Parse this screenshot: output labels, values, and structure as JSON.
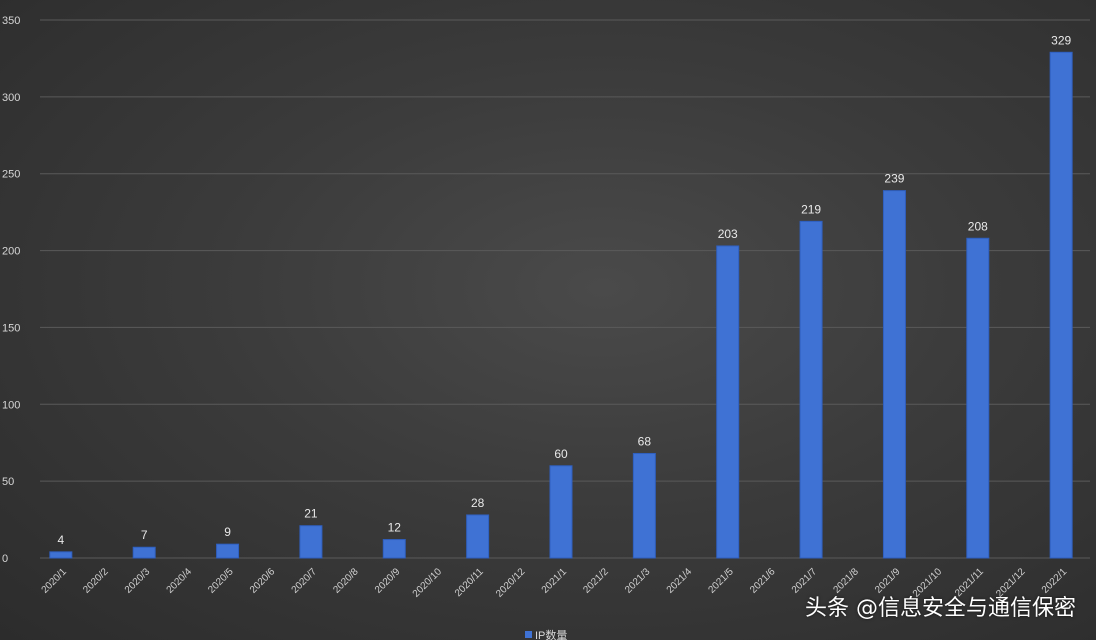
{
  "chart_data": {
    "type": "bar",
    "categories": [
      "2020/1",
      "2020/2",
      "2020/3",
      "2020/4",
      "2020/5",
      "2020/6",
      "2020/7",
      "2020/8",
      "2020/9",
      "2020/10",
      "2020/11",
      "2020/12",
      "2021/1",
      "2021/2",
      "2021/3",
      "2021/4",
      "2021/5",
      "2021/6",
      "2021/7",
      "2021/8",
      "2021/9",
      "2021/10",
      "2021/11",
      "2021/12",
      "2022/1"
    ],
    "series": [
      {
        "name": "IP数量",
        "values": [
          4,
          null,
          7,
          null,
          9,
          null,
          21,
          null,
          12,
          null,
          28,
          null,
          60,
          null,
          68,
          null,
          203,
          null,
          219,
          null,
          239,
          null,
          208,
          null,
          329
        ]
      }
    ],
    "ylim": [
      0,
      350
    ],
    "yticks": [
      0,
      50,
      100,
      150,
      200,
      250,
      300,
      350
    ],
    "grid": true,
    "legend_position": "bottom",
    "colors": {
      "bar": "#3f72d4",
      "bar_edge": "#2f5fbf"
    }
  },
  "watermark": "头条 @信息安全与通信保密"
}
